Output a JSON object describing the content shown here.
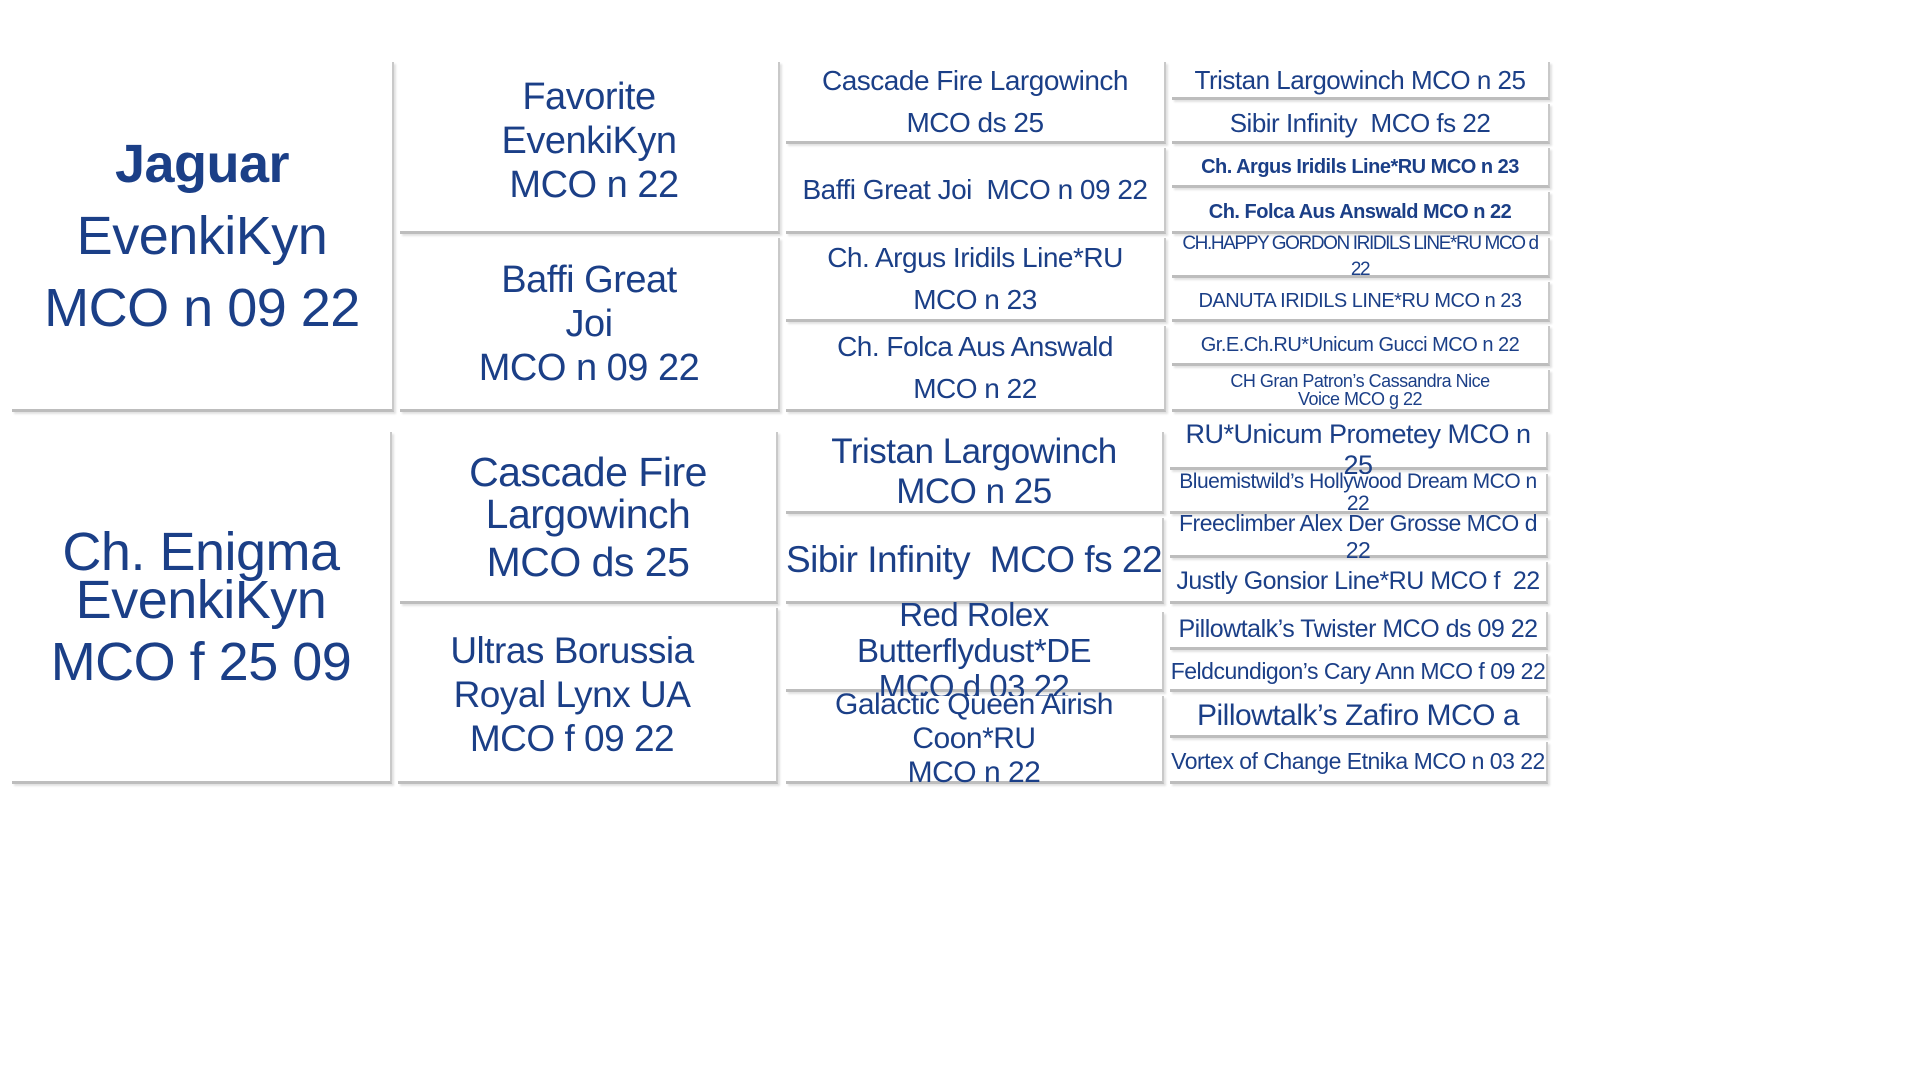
{
  "pedigree": {
    "sire": [
      "Jaguar",
      "EvenkiKyn",
      "MCO n 09 22"
    ],
    "dam": [
      "Ch. Enigma",
      "EvenkiKyn",
      "MCO f 25 09"
    ],
    "sire_sire": [
      "Favorite",
      "EvenkiKyn",
      " MCO n 22"
    ],
    "sire_dam": [
      "Baffi Great",
      "Joi",
      "MCO n 09 22"
    ],
    "dam_sire": [
      "Cascade Fire",
      "Largowinch",
      "MCO ds 25"
    ],
    "dam_dam": [
      "Ultras Borussia",
      "Royal Lynx UA",
      "MCO f 09 22"
    ],
    "gen3": [
      [
        "Cascade Fire Largowinch",
        "MCO ds 25"
      ],
      [
        "Baffi Great Joi  MCO n 09 22"
      ],
      [
        "Ch. Argus Iridils Line*RU",
        "MCO n 23"
      ],
      [
        "Ch. Folca Aus Answald",
        "MCO n 22"
      ],
      [
        "Tristan Largowinch",
        "MCO n 25"
      ],
      [
        "Sibir Infinity  MCO fs 22"
      ],
      [
        "Red Rolex Butterflydust*DE",
        "MCO d 03 22"
      ],
      [
        "Galactic Queen Airish Coon*RU",
        "MCO n 22"
      ]
    ],
    "gen4": [
      "Tristan Largowinch MCO n 25",
      "Sibir Infinity  MCO fs 22",
      "Ch. Argus Iridils Line*RU MCO n 23",
      "Ch. Folca Aus Answald MCO n 22",
      "CH.HAPPY GORDON IRIDILS LINE*RU MCO d 22",
      "DANUTA IRIDILS LINE*RU MCO n 23",
      "Gr.E.Ch.RU*Unicum Gucci MCO n 22",
      "CH Gran Patron’s Cassandra Nice Voice MCO g 22",
      "RU*Unicum Prometey MCO n 25",
      "Bluemistwild’s Hollywood Dream MCO n 22",
      "Freeclimber Alex Der Grosse MCO d 22",
      "Justly Gonsior Line*RU MCO f  22",
      "Pillowtalk’s Twister MCO ds 09 22",
      "Feldcundigon’s Cary Ann MCO f 09 22",
      "Pillowtalk’s Zafiro MCO a",
      "Vortex of Change Etnika MCO n 03 22"
    ]
  }
}
